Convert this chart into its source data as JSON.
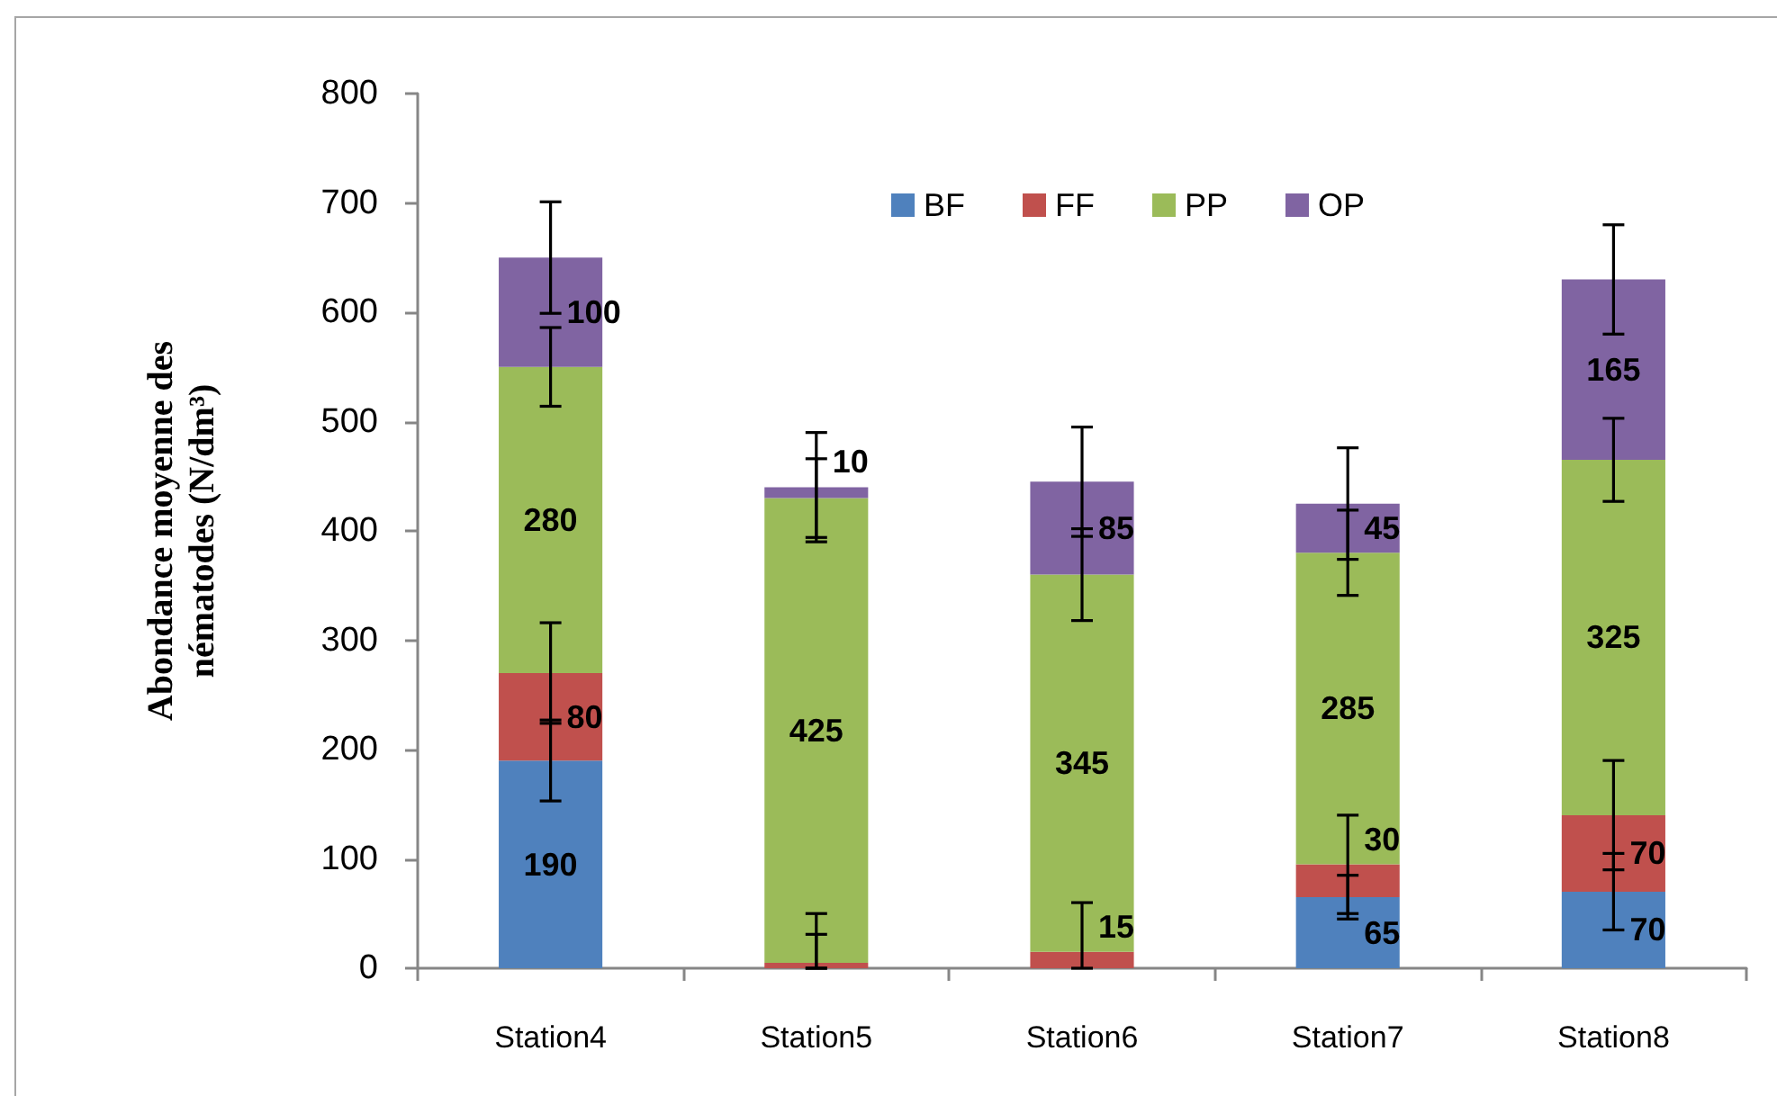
{
  "chart_data": {
    "type": "bar",
    "stacked": true,
    "ylabel": "Abondance moyenne des nématodes (N/dm³)",
    "categories": [
      "Station4",
      "Station5",
      "Station6",
      "Station7",
      "Station8"
    ],
    "series": [
      {
        "name": "BF",
        "color": "#4f81bd",
        "values": [
          190,
          0,
          0,
          65,
          70
        ],
        "value_labels": [
          "190",
          null,
          null,
          "65",
          "70"
        ],
        "errors": [
          37,
          [
            0,
            31
          ],
          null,
          20,
          35
        ]
      },
      {
        "name": "FF",
        "color": "#c0504d",
        "values": [
          80,
          5,
          15,
          30,
          70
        ],
        "value_labels": [
          "80",
          null,
          "15",
          "30",
          "70"
        ],
        "errors": [
          46,
          [
            0,
            50
          ],
          [
            0,
            60
          ],
          45,
          50
        ]
      },
      {
        "name": "PP",
        "color": "#9bbb59",
        "values": [
          280,
          425,
          345,
          285,
          325
        ],
        "value_labels": [
          "280",
          "425",
          "345",
          "285",
          "325"
        ],
        "errors": [
          36,
          36,
          42,
          39,
          38
        ]
      },
      {
        "name": "OP",
        "color": "#8064a2",
        "values": [
          100,
          10,
          85,
          45,
          165
        ],
        "value_labels": [
          "100",
          "10",
          "85",
          "45",
          "165"
        ],
        "errors": [
          51,
          50,
          50,
          51,
          50
        ]
      }
    ],
    "ylim": [
      0,
      800
    ],
    "yticks": [
      0,
      100,
      200,
      300,
      400,
      500,
      600,
      700,
      800
    ],
    "legend": "top",
    "grid": false
  }
}
